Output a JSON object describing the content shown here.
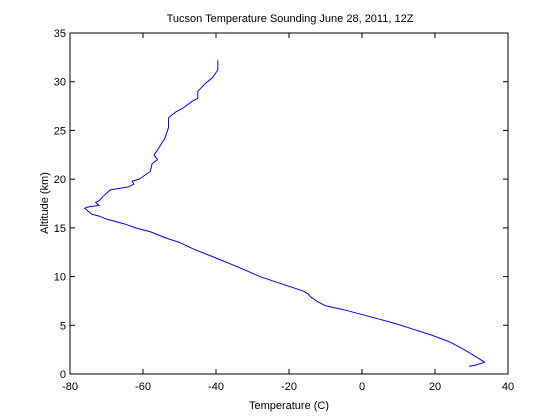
{
  "chart_data": {
    "type": "line",
    "title": "Tucson Temperature Sounding June 28, 2011, 12Z",
    "xlabel": "Temperature (C)",
    "ylabel": "Altitude (km)",
    "xlim": [
      -80,
      40
    ],
    "ylim": [
      0,
      35
    ],
    "xticks": [
      -80,
      -60,
      -40,
      -20,
      0,
      20,
      40
    ],
    "yticks": [
      0,
      5,
      10,
      15,
      20,
      25,
      30,
      35
    ],
    "grid": false,
    "line_color": "#0000ff",
    "series": [
      {
        "x": [
          29.3,
          31.0,
          33.6,
          32.0,
          28.0,
          24.0,
          19.0,
          14.0,
          9.0,
          5.0,
          0.0,
          -5.0,
          -7.5,
          -10.0,
          -12.0,
          -14.0,
          -14.7,
          -16.0,
          -20.0,
          -24.0,
          -28.0,
          -31.0,
          -36.0,
          -38.0,
          -42.0,
          -46.0,
          -50.0,
          -54.0,
          -58.0,
          -62.0,
          -65.0,
          -68.0,
          -70.0,
          -72.0,
          -74.0,
          -75.0,
          -76.0,
          -75.5,
          -74.0,
          -72.0,
          -73.0,
          -72.0,
          -71.0,
          -69.0,
          -64.0,
          -62.5,
          -63.0,
          -61.0,
          -59.5,
          -58.0,
          -57.5,
          -56.0,
          -57.0,
          -56.0,
          -54.0,
          -53.0,
          -53.0,
          -51.0,
          -49.0,
          -46.5,
          -45.0,
          -45.0,
          -43.0,
          -41.0,
          -39.5,
          -39.5
        ],
        "y": [
          0.8,
          0.9,
          1.2,
          1.6,
          2.5,
          3.3,
          4.0,
          4.6,
          5.2,
          5.6,
          6.1,
          6.6,
          6.8,
          7.0,
          7.4,
          7.9,
          8.2,
          8.5,
          9.0,
          9.5,
          10.0,
          10.5,
          11.3,
          11.6,
          12.2,
          12.8,
          13.5,
          14.0,
          14.6,
          15.0,
          15.4,
          15.7,
          15.9,
          16.2,
          16.4,
          16.7,
          17.0,
          17.1,
          17.2,
          17.3,
          17.6,
          17.8,
          18.2,
          18.9,
          19.2,
          19.5,
          19.8,
          20.0,
          20.4,
          20.8,
          21.6,
          22.0,
          22.5,
          23.0,
          24.2,
          25.3,
          26.3,
          26.9,
          27.3,
          28.0,
          28.3,
          29.0,
          29.8,
          30.4,
          31.2,
          32.2
        ]
      }
    ]
  }
}
